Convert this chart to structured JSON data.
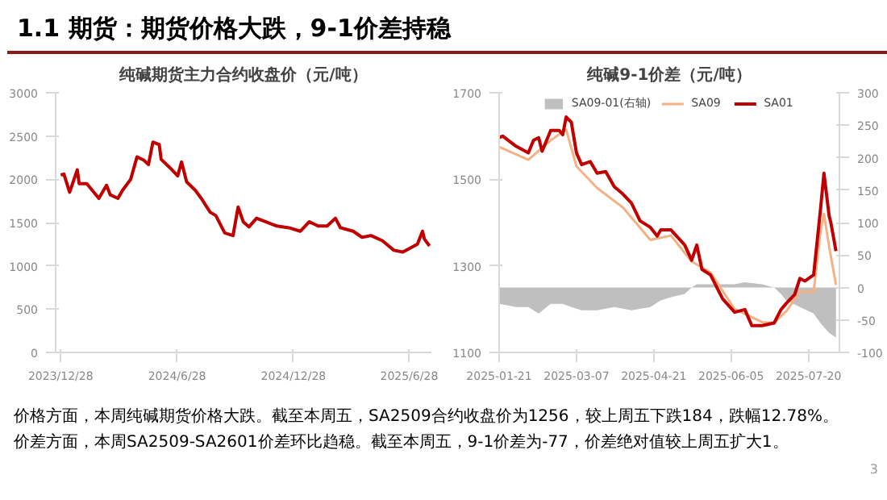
{
  "chart_data": [
    {
      "type": "other",
      "title": "1.1 期货：期货价格大跌，9-1价差持稳",
      "annotations": [
        "价格方面，本周纯碱期货价格大跌。截至本周五，SA2509合约收盘价为1256，较上周五下跌184，跌幅12.78%。",
        "价差方面，本周SA2509-SA2601价差环比趋稳。截至本周五，9-1价差为-77，价差绝对值较上周五扩大1。",
        "3"
      ]
    },
    {
      "type": "line",
      "title": "纯碱期货主力合约收盘价（元/吨）",
      "grid": false,
      "legend": false,
      "xlim": [
        "2023-12-20",
        "2025-08-02"
      ],
      "xticks": [
        {
          "value": "2023-12-28",
          "label": "2023/12/28"
        },
        {
          "value": "2024-06-28",
          "label": "2024/6/28"
        },
        {
          "value": "2024-12-28",
          "label": "2024/12/28"
        },
        {
          "value": "2025-06-28",
          "label": "2025/6/28"
        }
      ],
      "ylim": [
        0,
        3000
      ],
      "yticks": [
        0,
        500,
        1000,
        1500,
        2000,
        2500,
        3000
      ],
      "x": [
        "2023-12-28",
        "2024-01-02",
        "2024-01-11",
        "2024-01-23",
        "2024-01-26",
        "2024-02-07",
        "2024-02-26",
        "2024-03-09",
        "2024-03-15",
        "2024-03-27",
        "2024-04-03",
        "2024-04-16",
        "2024-04-26",
        "2024-05-07",
        "2024-05-14",
        "2024-05-21",
        "2024-05-31",
        "2024-06-03",
        "2024-06-20",
        "2024-06-29",
        "2024-07-05",
        "2024-07-13",
        "2024-07-27",
        "2024-08-05",
        "2024-08-19",
        "2024-08-28",
        "2024-09-11",
        "2024-09-24",
        "2024-10-02",
        "2024-10-10",
        "2024-10-19",
        "2024-10-31",
        "2024-11-14",
        "2024-12-02",
        "2024-12-21",
        "2025-01-08",
        "2025-01-22",
        "2025-02-05",
        "2025-02-19",
        "2025-03-04",
        "2025-03-12",
        "2025-04-01",
        "2025-04-15",
        "2025-04-29",
        "2025-05-17",
        "2025-06-04",
        "2025-06-18",
        "2025-07-11",
        "2025-07-19",
        "2025-07-22",
        "2025-07-30"
      ],
      "series": [
        {
          "color": "#c00000",
          "values": [
            2050,
            2060,
            1850,
            2110,
            1950,
            1950,
            1780,
            1930,
            1820,
            1780,
            1870,
            2000,
            2260,
            2220,
            2170,
            2430,
            2400,
            2230,
            2110,
            2040,
            2200,
            1970,
            1870,
            1780,
            1620,
            1580,
            1380,
            1350,
            1680,
            1510,
            1450,
            1550,
            1510,
            1460,
            1440,
            1400,
            1510,
            1460,
            1460,
            1550,
            1440,
            1400,
            1330,
            1350,
            1290,
            1180,
            1160,
            1250,
            1400,
            1310,
            1230
          ]
        }
      ]
    },
    {
      "type": "line",
      "title": "纯碱9-1价差（元/吨）",
      "grid": false,
      "legend": "top",
      "xlim": [
        "2025-01-21",
        "2025-08-07"
      ],
      "xticks": [
        "2025-01-21",
        "2025-03-07",
        "2025-04-21",
        "2025-06-05",
        "2025-07-20"
      ],
      "ylim": [
        1100,
        1700
      ],
      "yticks": [
        1100,
        1300,
        1500,
        1700
      ],
      "y2lim": [
        -100,
        300
      ],
      "y2ticks": [
        -100,
        -50,
        0,
        50,
        100,
        150,
        200,
        250,
        300
      ],
      "series": [
        {
          "name": "SA09-01(右轴)",
          "type": "area",
          "axis": "y2",
          "color": "#bfbfbf",
          "x": [
            "2025-01-21",
            "2025-01-31",
            "2025-02-07",
            "2025-02-13",
            "2025-02-20",
            "2025-02-27",
            "2025-03-04",
            "2025-03-10",
            "2025-03-19",
            "2025-03-29",
            "2025-04-08",
            "2025-04-19",
            "2025-04-25",
            "2025-05-01",
            "2025-05-09",
            "2025-05-13",
            "2025-05-16",
            "2025-05-24",
            "2025-05-31",
            "2025-06-07",
            "2025-06-13",
            "2025-06-23",
            "2025-06-30",
            "2025-07-04",
            "2025-07-07",
            "2025-07-15",
            "2025-07-23",
            "2025-07-27",
            "2025-08-01",
            "2025-08-05"
          ],
          "values": [
            -25,
            -30,
            -30,
            -40,
            -25,
            -25,
            -30,
            -35,
            -35,
            -30,
            -35,
            -30,
            -20,
            -15,
            -10,
            0,
            5,
            5,
            5,
            5,
            8,
            5,
            0,
            -10,
            -20,
            -30,
            -40,
            -55,
            -70,
            -77
          ]
        },
        {
          "name": "SA09",
          "color": "#f4b183",
          "x": [
            "2025-01-21",
            "2025-02-07",
            "2025-02-20",
            "2025-03-01",
            "2025-03-07",
            "2025-03-19",
            "2025-04-03",
            "2025-04-19",
            "2025-05-01",
            "2025-05-13",
            "2025-05-24",
            "2025-06-07",
            "2025-06-23",
            "2025-06-30",
            "2025-07-07",
            "2025-07-15",
            "2025-07-23",
            "2025-07-27",
            "2025-07-29",
            "2025-08-01",
            "2025-08-05"
          ],
          "values": [
            1575,
            1545,
            1590,
            1615,
            1530,
            1480,
            1435,
            1360,
            1370,
            1310,
            1285,
            1200,
            1170,
            1168,
            1195,
            1240,
            1240,
            1380,
            1420,
            1345,
            1256
          ]
        },
        {
          "name": "SA01",
          "color": "#c00000",
          "x": [
            "2025-01-21",
            "2025-01-23",
            "2025-01-31",
            "2025-02-07",
            "2025-02-10",
            "2025-02-13",
            "2025-02-15",
            "2025-02-20",
            "2025-02-25",
            "2025-02-27",
            "2025-03-01",
            "2025-03-04",
            "2025-03-07",
            "2025-03-10",
            "2025-03-15",
            "2025-03-19",
            "2025-03-24",
            "2025-03-29",
            "2025-04-03",
            "2025-04-08",
            "2025-04-13",
            "2025-04-19",
            "2025-04-23",
            "2025-04-25",
            "2025-05-01",
            "2025-05-09",
            "2025-05-13",
            "2025-05-16",
            "2025-05-19",
            "2025-05-24",
            "2025-05-31",
            "2025-06-07",
            "2025-06-13",
            "2025-06-17",
            "2025-06-23",
            "2025-06-30",
            "2025-07-04",
            "2025-07-07",
            "2025-07-12",
            "2025-07-15",
            "2025-07-18",
            "2025-07-23",
            "2025-07-27",
            "2025-07-29",
            "2025-08-01",
            "2025-08-02",
            "2025-08-05"
          ],
          "values": [
            1596,
            1600,
            1576,
            1561,
            1590,
            1596,
            1565,
            1613,
            1613,
            1603,
            1644,
            1632,
            1561,
            1534,
            1541,
            1514,
            1518,
            1483,
            1466,
            1445,
            1404,
            1389,
            1369,
            1383,
            1383,
            1348,
            1313,
            1348,
            1292,
            1279,
            1224,
            1193,
            1199,
            1162,
            1162,
            1168,
            1199,
            1213,
            1234,
            1271,
            1265,
            1279,
            1431,
            1514,
            1416,
            1400,
            1334
          ]
        }
      ]
    }
  ]
}
